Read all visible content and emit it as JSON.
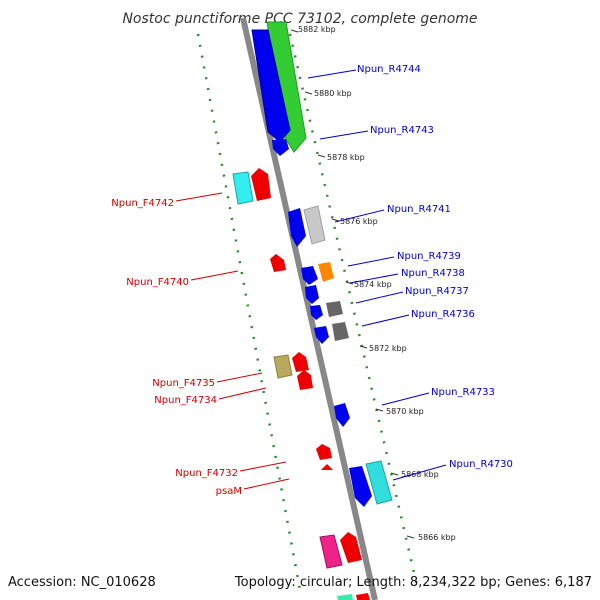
{
  "title": "Nostoc punctiforme PCC 73102, complete genome",
  "accession": "Accession: NC_010628",
  "summary": "Topology: circular; Length: 8,234,322 bp; Genes: 6,187",
  "colors": {
    "backbone": "#888888",
    "dots": "#2e8b2e",
    "reverse_label": "#0000cc",
    "forward_label": "#cc0000"
  },
  "ticks": [
    {
      "label": "5882 kbp"
    },
    {
      "label": "5880 kbp"
    },
    {
      "label": "5878 kbp"
    },
    {
      "label": "5876 kbp"
    },
    {
      "label": "5874 kbp"
    },
    {
      "label": "5872 kbp"
    },
    {
      "label": "5870 kbp"
    },
    {
      "label": "5868 kbp"
    },
    {
      "label": "5866 kbp"
    }
  ],
  "reverse_labels": [
    {
      "text": "Npun_R4744"
    },
    {
      "text": "Npun_R4743"
    },
    {
      "text": "Npun_R4741"
    },
    {
      "text": "Npun_R4739"
    },
    {
      "text": "Npun_R4738"
    },
    {
      "text": "Npun_R4737"
    },
    {
      "text": "Npun_R4736"
    },
    {
      "text": "Npun_R4733"
    },
    {
      "text": "Npun_R4730"
    }
  ],
  "forward_labels": [
    {
      "text": "Npun_F4742"
    },
    {
      "text": "Npun_F4740"
    },
    {
      "text": "Npun_F4735"
    },
    {
      "text": "Npun_F4734"
    },
    {
      "text": "Npun_F4732"
    },
    {
      "text": "psaM"
    }
  ]
}
